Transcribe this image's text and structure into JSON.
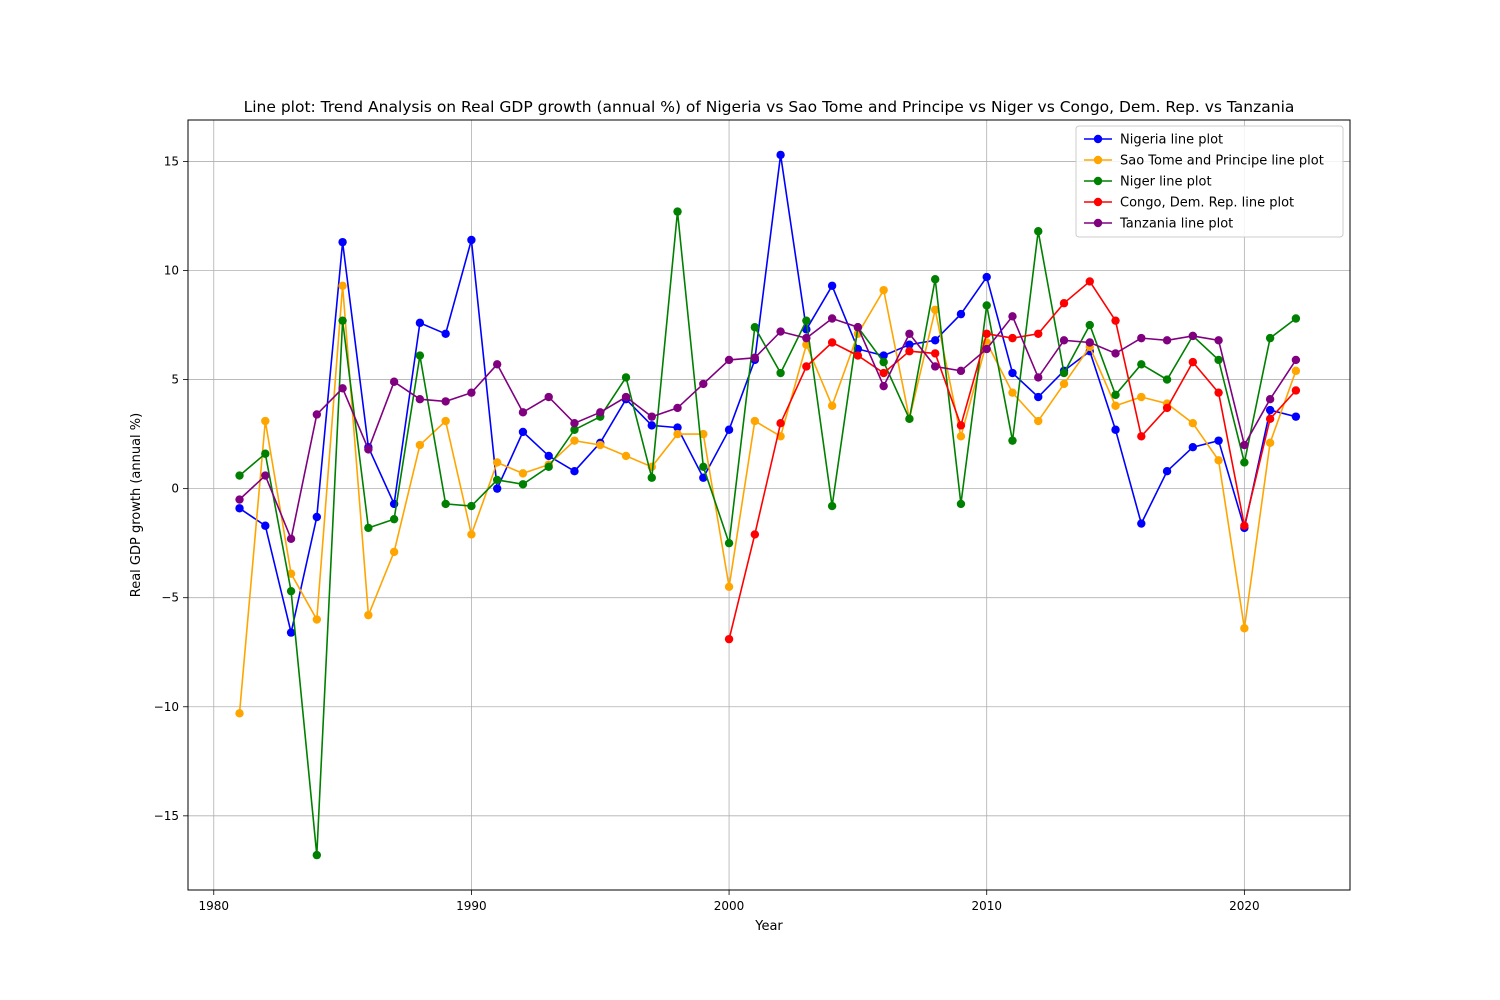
{
  "chart_data": {
    "type": "line",
    "title": "Line plot: Trend Analysis on Real GDP growth (annual %) of Nigeria vs Sao Tome and Principe vs Niger vs Congo, Dem. Rep. vs Tanzania",
    "xlabel": "Year",
    "ylabel": "Real GDP growth (annual %)",
    "xlim": [
      1979.0,
      2024.1
    ],
    "ylim": [
      -18.4,
      16.9
    ],
    "xticks": [
      1980,
      1990,
      2000,
      2010,
      2020
    ],
    "xtick_labels": [
      "1980",
      "1990",
      "2000",
      "2010",
      "2020"
    ],
    "yticks": [
      -15,
      -10,
      -5,
      0,
      5,
      10,
      15
    ],
    "ytick_labels": [
      "−15",
      "−10",
      "−5",
      "0",
      "5",
      "10",
      "15"
    ],
    "grid": true,
    "legend_position": "top-right",
    "series": [
      {
        "name": "Nigeria line plot",
        "color": "#0000ff",
        "x": [
          1981,
          1982,
          1983,
          1984,
          1985,
          1986,
          1987,
          1988,
          1989,
          1990,
          1991,
          1992,
          1993,
          1994,
          1995,
          1996,
          1997,
          1998,
          1999,
          2000,
          2001,
          2002,
          2003,
          2004,
          2005,
          2006,
          2007,
          2008,
          2009,
          2010,
          2011,
          2012,
          2013,
          2014,
          2015,
          2016,
          2017,
          2018,
          2019,
          2020,
          2021,
          2022
        ],
        "values": [
          -0.9,
          -1.7,
          -6.6,
          -1.3,
          11.3,
          1.9,
          -0.7,
          7.6,
          7.1,
          11.4,
          0.0,
          2.6,
          1.5,
          0.8,
          2.1,
          4.1,
          2.9,
          2.8,
          0.5,
          2.7,
          5.9,
          15.3,
          7.3,
          9.3,
          6.4,
          6.1,
          6.6,
          6.8,
          8.0,
          9.7,
          5.3,
          4.2,
          5.4,
          6.3,
          2.7,
          -1.6,
          0.8,
          1.9,
          2.2,
          -1.8,
          3.6,
          3.3
        ]
      },
      {
        "name": "Sao Tome and Principe line plot",
        "color": "#ffa500",
        "x": [
          1981,
          1982,
          1983,
          1984,
          1985,
          1986,
          1987,
          1988,
          1989,
          1990,
          1991,
          1992,
          1993,
          1994,
          1995,
          1996,
          1997,
          1998,
          1999,
          2000,
          2001,
          2002,
          2003,
          2004,
          2005,
          2006,
          2007,
          2008,
          2009,
          2010,
          2011,
          2012,
          2013,
          2014,
          2015,
          2016,
          2017,
          2018,
          2019,
          2020,
          2021,
          2022
        ],
        "values": [
          -10.3,
          3.1,
          -3.9,
          -6.0,
          9.3,
          -5.8,
          -2.9,
          2.0,
          3.1,
          -2.1,
          1.2,
          0.7,
          1.1,
          2.2,
          2.0,
          1.5,
          1.0,
          2.5,
          2.5,
          -4.5,
          3.1,
          2.4,
          6.6,
          3.8,
          7.1,
          9.1,
          3.2,
          8.2,
          2.4,
          6.7,
          4.4,
          3.1,
          4.8,
          6.5,
          3.8,
          4.2,
          3.9,
          3.0,
          1.3,
          -6.4,
          2.1,
          5.4
        ]
      },
      {
        "name": "Niger line plot",
        "color": "#008000",
        "x": [
          1981,
          1982,
          1983,
          1984,
          1985,
          1986,
          1987,
          1988,
          1989,
          1990,
          1991,
          1992,
          1993,
          1994,
          1995,
          1996,
          1997,
          1998,
          1999,
          2000,
          2001,
          2002,
          2003,
          2004,
          2005,
          2006,
          2007,
          2008,
          2009,
          2010,
          2011,
          2012,
          2013,
          2014,
          2015,
          2016,
          2017,
          2018,
          2019,
          2020,
          2021,
          2022
        ],
        "values": [
          0.6,
          1.6,
          -4.7,
          -16.8,
          7.7,
          -1.8,
          -1.4,
          6.1,
          -0.7,
          -0.8,
          0.4,
          0.2,
          1.0,
          2.7,
          3.3,
          5.1,
          0.5,
          12.7,
          1.0,
          -2.5,
          7.4,
          5.3,
          7.7,
          -0.8,
          7.4,
          5.8,
          3.2,
          9.6,
          -0.7,
          8.4,
          2.2,
          11.8,
          5.3,
          7.5,
          4.3,
          5.7,
          5.0,
          7.0,
          5.9,
          1.2,
          6.9,
          7.8
        ]
      },
      {
        "name": "Congo, Dem. Rep. line plot",
        "color": "#ff0000",
        "x": [
          2000,
          2001,
          2002,
          2003,
          2004,
          2005,
          2006,
          2007,
          2008,
          2009,
          2010,
          2011,
          2012,
          2013,
          2014,
          2015,
          2016,
          2017,
          2018,
          2019,
          2020,
          2021,
          2022
        ],
        "values": [
          -6.9,
          -2.1,
          3.0,
          5.6,
          6.7,
          6.1,
          5.3,
          6.3,
          6.2,
          2.9,
          7.1,
          6.9,
          7.1,
          8.5,
          9.5,
          7.7,
          2.4,
          3.7,
          5.8,
          4.4,
          -1.7,
          3.2,
          4.5
        ]
      },
      {
        "name": "Tanzania line plot",
        "color": "#800080",
        "x": [
          1981,
          1982,
          1983,
          1984,
          1985,
          1986,
          1987,
          1988,
          1989,
          1990,
          1991,
          1992,
          1993,
          1994,
          1995,
          1996,
          1997,
          1998,
          1999,
          2000,
          2001,
          2002,
          2003,
          2004,
          2005,
          2006,
          2007,
          2008,
          2009,
          2010,
          2011,
          2012,
          2013,
          2014,
          2015,
          2016,
          2017,
          2018,
          2019,
          2020,
          2021,
          2022
        ],
        "values": [
          -0.5,
          0.6,
          -2.3,
          3.4,
          4.6,
          1.8,
          4.9,
          4.1,
          4.0,
          4.4,
          5.7,
          3.5,
          4.2,
          3.0,
          3.5,
          4.2,
          3.3,
          3.7,
          4.8,
          5.9,
          6.0,
          7.2,
          6.9,
          7.8,
          7.4,
          4.7,
          7.1,
          5.6,
          5.4,
          6.4,
          7.9,
          5.1,
          6.8,
          6.7,
          6.2,
          6.9,
          6.8,
          7.0,
          6.8,
          2.0,
          4.1,
          5.9
        ]
      }
    ]
  }
}
